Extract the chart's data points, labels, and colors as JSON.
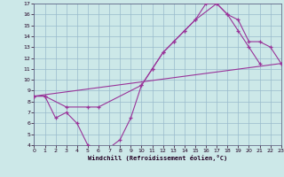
{
  "xlabel": "Windchill (Refroidissement éolien,°C)",
  "xlim": [
    0,
    23
  ],
  "ylim": [
    4,
    17
  ],
  "xticks": [
    0,
    1,
    2,
    3,
    4,
    5,
    6,
    7,
    8,
    9,
    10,
    11,
    12,
    13,
    14,
    15,
    16,
    17,
    18,
    19,
    20,
    21,
    22,
    23
  ],
  "yticks": [
    4,
    5,
    6,
    7,
    8,
    9,
    10,
    11,
    12,
    13,
    14,
    15,
    16,
    17
  ],
  "bg_color": "#cce8e8",
  "grid_color": "#99bbcc",
  "line_color": "#993399",
  "line1_x": [
    0,
    1,
    2,
    3,
    4,
    5,
    6,
    7,
    8,
    9,
    10,
    11,
    12,
    13,
    14,
    15,
    16,
    17,
    18,
    19,
    20,
    21
  ],
  "line1_y": [
    8.5,
    8.5,
    6.5,
    7.0,
    6.0,
    4.0,
    3.8,
    3.75,
    4.5,
    6.5,
    9.5,
    11.0,
    12.5,
    13.5,
    14.5,
    15.5,
    17.0,
    17.0,
    16.0,
    14.5,
    13.0,
    11.5
  ],
  "line2_x": [
    0,
    1,
    3,
    5,
    6,
    10,
    11,
    12,
    13,
    14,
    15,
    17,
    18,
    19,
    20,
    21,
    22,
    23
  ],
  "line2_y": [
    8.5,
    8.5,
    7.5,
    7.5,
    7.5,
    9.5,
    11.0,
    12.5,
    13.5,
    14.5,
    15.5,
    17.0,
    16.0,
    15.5,
    13.5,
    13.5,
    13.0,
    11.5
  ],
  "line3_x": [
    0,
    23
  ],
  "line3_y": [
    8.5,
    11.5
  ]
}
